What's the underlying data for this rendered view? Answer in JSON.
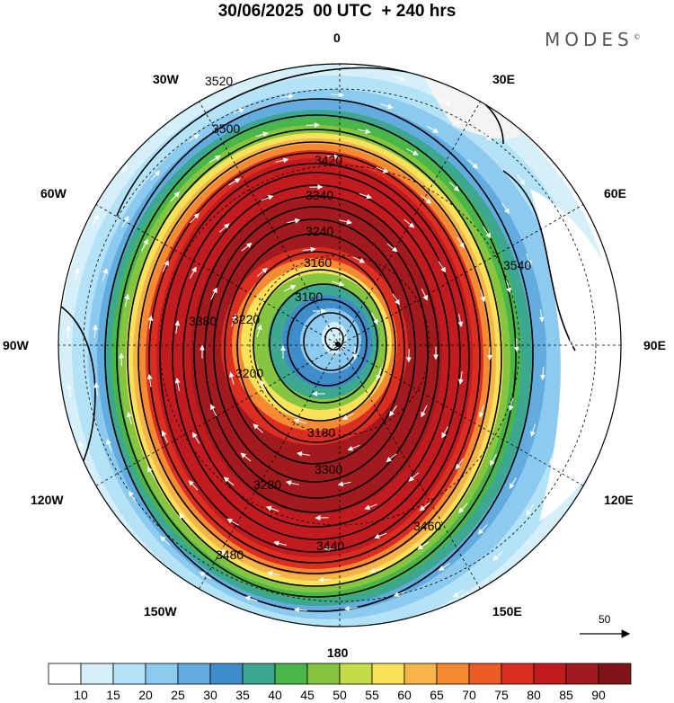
{
  "header": {
    "title": "30/06/2025  00 UTC  + 240 hrs",
    "brand": "MODES",
    "brand_mark": "©"
  },
  "map": {
    "projection": "south-polar-stereographic",
    "longitude_labels": {
      "top": "0",
      "top_left": "30W",
      "top_right": "30E",
      "upper_left": "60W",
      "upper_right": "60E",
      "left": "90W",
      "right": "90E",
      "lower_left": "120W",
      "lower_right": "120E",
      "bottom_left": "150W",
      "bottom_right": "150E",
      "bottom": "180"
    },
    "contour_labels": [
      "3520",
      "3500",
      "3480",
      "3460",
      "3440",
      "3420",
      "3340",
      "3240",
      "3220",
      "3200",
      "3180",
      "3160",
      "3100",
      "3380",
      "3300",
      "3280",
      "3540"
    ],
    "wind_reference": {
      "value": "50",
      "icon": "arrow-right-icon"
    }
  },
  "colorbar": {
    "labels": [
      "10",
      "15",
      "20",
      "25",
      "30",
      "35",
      "40",
      "45",
      "50",
      "55",
      "60",
      "65",
      "70",
      "75",
      "80",
      "85",
      "90"
    ],
    "colors": [
      "#ffffff",
      "#d6f0fb",
      "#b4e2f7",
      "#8ccbef",
      "#62ace0",
      "#3f8ccb",
      "#3da88f",
      "#48b648",
      "#85c53f",
      "#c6dc4a",
      "#f7e25a",
      "#f7b549",
      "#f58a32",
      "#ec5c26",
      "#dc2e20",
      "#c21b1f",
      "#a21a1d",
      "#7f1418"
    ]
  }
}
